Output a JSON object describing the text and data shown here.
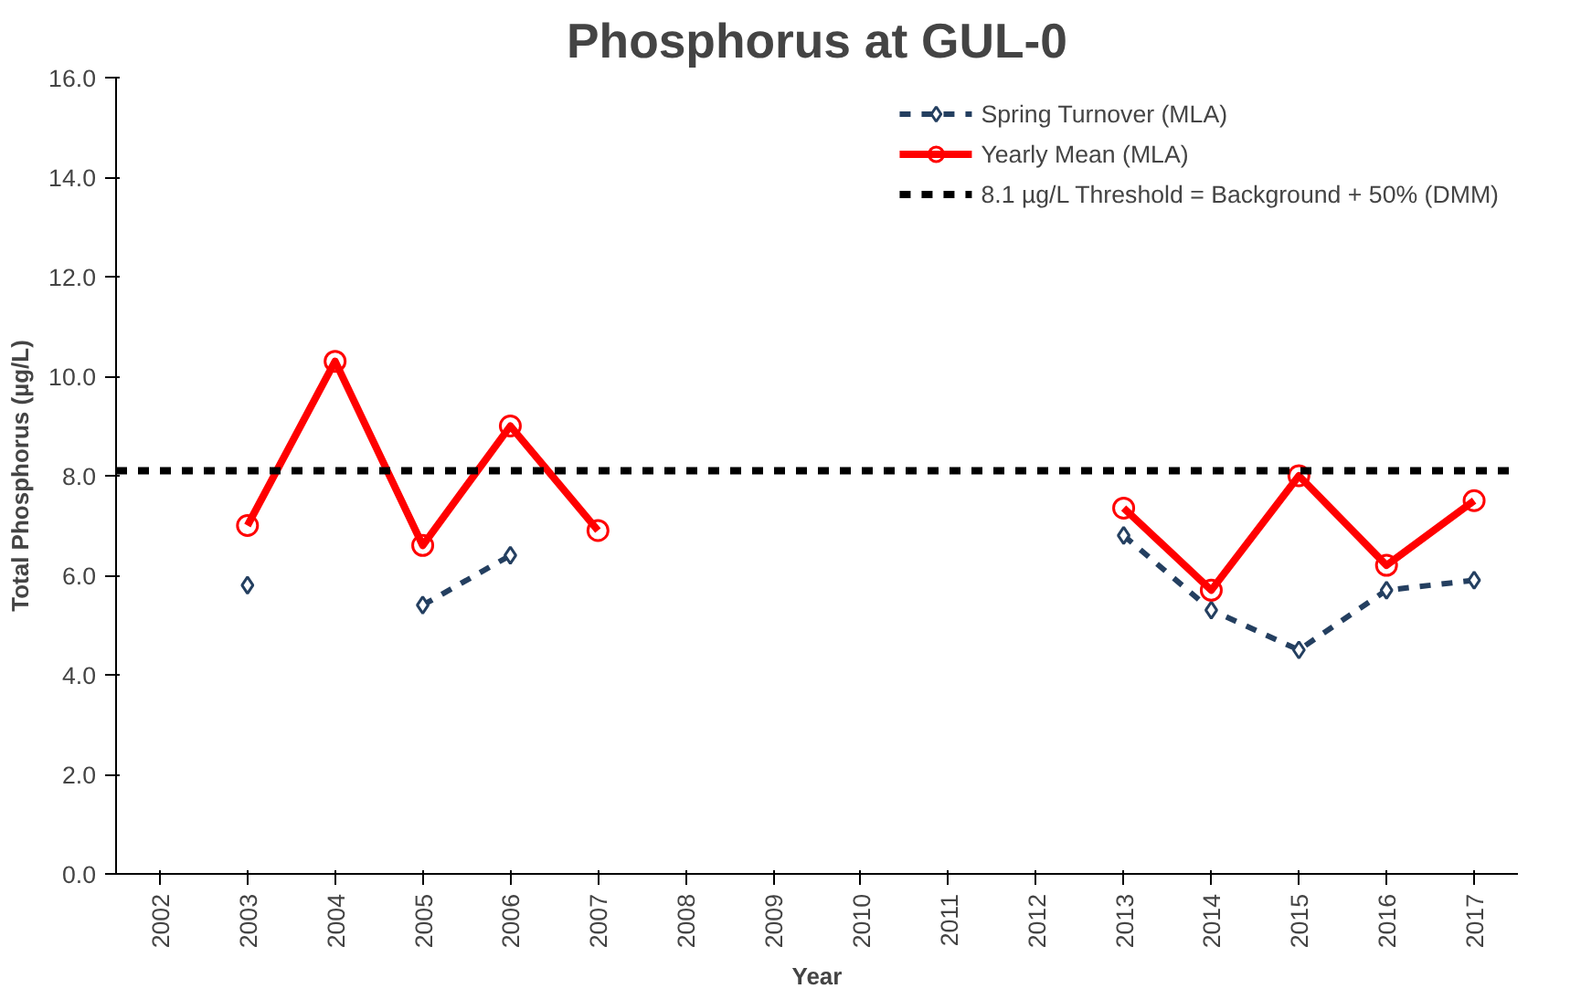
{
  "chart_data": {
    "type": "line",
    "title": "Phosphorus at GUL-0",
    "xlabel": "Year",
    "ylabel": "Total Phosphorus (µg/L)",
    "categories": [
      "2002",
      "2003",
      "2004",
      "2005",
      "2006",
      "2007",
      "2008",
      "2009",
      "2010",
      "2011",
      "2012",
      "2013",
      "2014",
      "2015",
      "2016",
      "2017"
    ],
    "series": [
      {
        "name": "Spring Turnover (MLA)",
        "color": "#243f60",
        "marker": "diamond",
        "line_style": "dashed",
        "values": [
          null,
          5.8,
          null,
          5.4,
          6.4,
          null,
          null,
          null,
          null,
          null,
          null,
          6.8,
          5.3,
          4.5,
          5.7,
          5.9
        ]
      },
      {
        "name": "Yearly Mean (MLA)",
        "color": "#ff0000",
        "marker": "circle",
        "line_style": "solid",
        "values": [
          null,
          7.0,
          10.3,
          6.6,
          9.0,
          6.9,
          null,
          null,
          null,
          null,
          null,
          7.35,
          5.7,
          8.0,
          6.2,
          7.5
        ]
      }
    ],
    "ref_lines": [
      {
        "axis": "y",
        "value": 8.1,
        "label": "8.1 µg/L Threshold = Background + 50% (DMM)",
        "color": "#000000",
        "line_style": "dashed"
      }
    ],
    "ylim": [
      0,
      16
    ],
    "yticks": [
      {
        "value": 0,
        "label": "0.0"
      },
      {
        "value": 2,
        "label": "2.0"
      },
      {
        "value": 4,
        "label": "4.0"
      },
      {
        "value": 6,
        "label": "6.0"
      },
      {
        "value": 8,
        "label": "8.0"
      },
      {
        "value": 10,
        "label": "10.0"
      },
      {
        "value": 12,
        "label": "12.0"
      },
      {
        "value": 14,
        "label": "14.0"
      },
      {
        "value": 16,
        "label": "16.0"
      }
    ],
    "grid": false,
    "legend": "top right"
  }
}
